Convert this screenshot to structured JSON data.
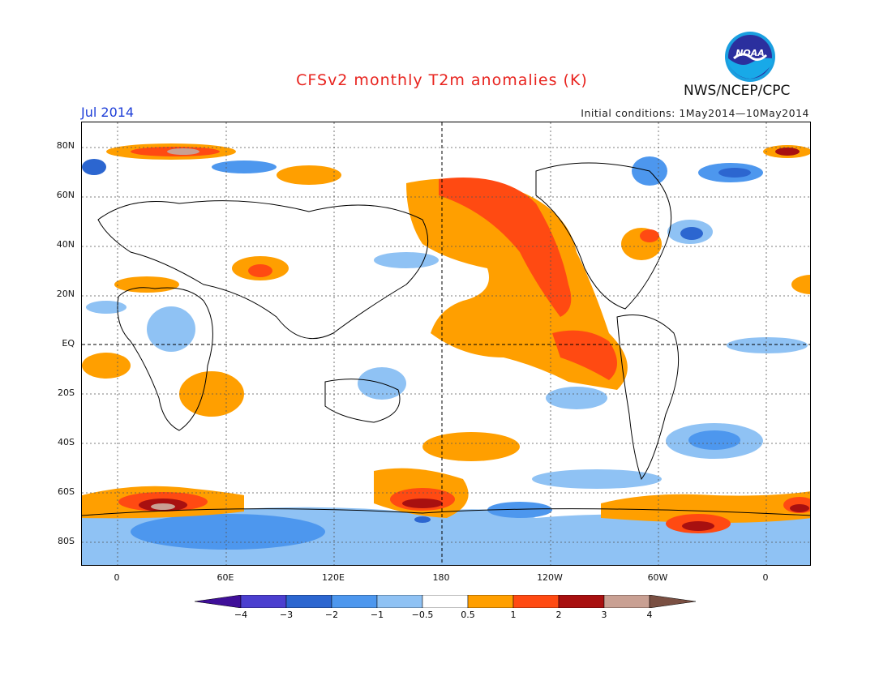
{
  "header": {
    "title": "CFSv2 monthly T2m anomalies (K)",
    "period": "Jul 2014",
    "initial_conditions": "Initial conditions: 1May2014—10May2014",
    "agency": "NWS/NCEP/CPC",
    "logo_text": "NOAA"
  },
  "map": {
    "projection": "cylindrical equidistant, 0-centered at 180",
    "x_ticks": [
      "0",
      "60E",
      "120E",
      "180",
      "120W",
      "60W",
      "0"
    ],
    "y_ticks": [
      "80N",
      "60N",
      "40N",
      "20N",
      "EQ",
      "20S",
      "40S",
      "60S",
      "80S"
    ],
    "grid": "dotted"
  },
  "colorbar": {
    "labels": [
      "−4",
      "−3",
      "−2",
      "−1",
      "−0.5",
      "0.5",
      "1",
      "2",
      "3",
      "4"
    ],
    "colors": [
      "#3f0f99",
      "#4b3fcf",
      "#2c66d0",
      "#4d97ee",
      "#8fc2f4",
      "#ffffff",
      "#ff9f00",
      "#ff4a12",
      "#a81010",
      "#c9a093",
      "#7a4f42"
    ]
  }
}
